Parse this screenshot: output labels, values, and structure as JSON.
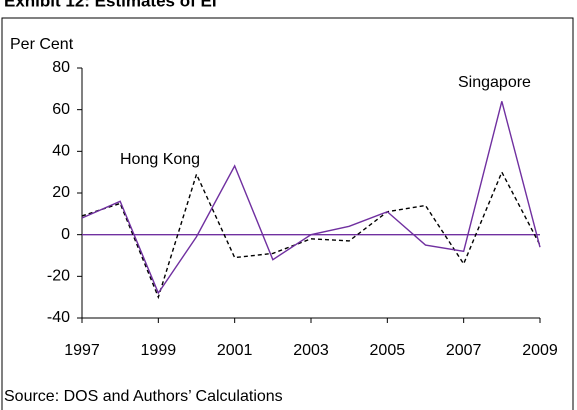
{
  "chart_data": {
    "type": "line",
    "title": "Exhibit 12: Estimates of EI",
    "y_label": "Per Cent",
    "source": "Source: DOS and Authors’ Calculations",
    "x": [
      1997,
      1998,
      1999,
      2000,
      2001,
      2002,
      2003,
      2004,
      2005,
      2006,
      2007,
      2008,
      2009
    ],
    "xlim": [
      1997,
      2009
    ],
    "xticks": [
      1997,
      1999,
      2001,
      2003,
      2005,
      2007,
      2009
    ],
    "ylim": [
      -40,
      80
    ],
    "yticks": [
      -40,
      -20,
      0,
      20,
      40,
      60,
      80
    ],
    "series": [
      {
        "name": "Hong Kong",
        "color": "#000000",
        "style": "dashed",
        "values": [
          9,
          15,
          -30,
          29,
          -11,
          -9,
          -2,
          -3,
          11,
          14,
          -14,
          30,
          -5
        ]
      },
      {
        "name": "Singapore",
        "color": "#7030a0",
        "style": "solid",
        "values": [
          8,
          16,
          -28,
          -1,
          33,
          -12,
          0,
          4,
          11,
          -5,
          -8,
          64,
          -6
        ]
      }
    ]
  }
}
